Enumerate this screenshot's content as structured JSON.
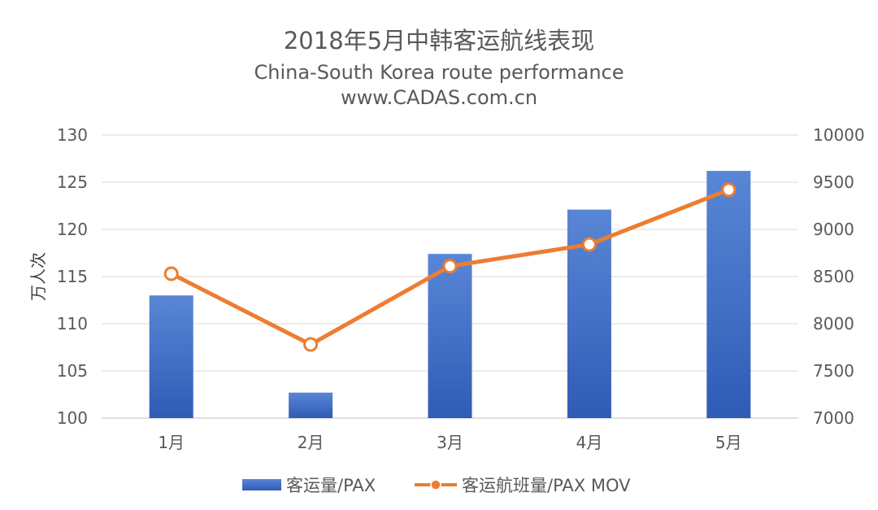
{
  "chart_data": {
    "type": "bar",
    "title": "2018年5月中韩客运航线表现",
    "subtitle": "China-South Korea route performance",
    "source": "www.CADAS.com.cn",
    "ylabel": "万人次",
    "ylabel_right": "",
    "categories": [
      "1月",
      "2月",
      "3月",
      "4月",
      "5月"
    ],
    "ylim": [
      100,
      130
    ],
    "yticks": [
      100,
      105,
      110,
      115,
      120,
      125,
      130
    ],
    "ylim_right": [
      7000,
      10000
    ],
    "yticks_right": [
      7000,
      7500,
      8000,
      8500,
      9000,
      9500,
      10000
    ],
    "grid": true,
    "legend_position": "bottom",
    "series": [
      {
        "name": "客运量/PAX",
        "type": "bar",
        "axis": "left",
        "color": "#4472C4",
        "values": [
          113.0,
          102.7,
          117.4,
          122.1,
          126.2
        ]
      },
      {
        "name": "客运航班量/PAX MOV",
        "type": "line",
        "axis": "right",
        "color": "#ED7D31",
        "values": [
          8530,
          7780,
          8610,
          8840,
          9420
        ]
      }
    ]
  }
}
